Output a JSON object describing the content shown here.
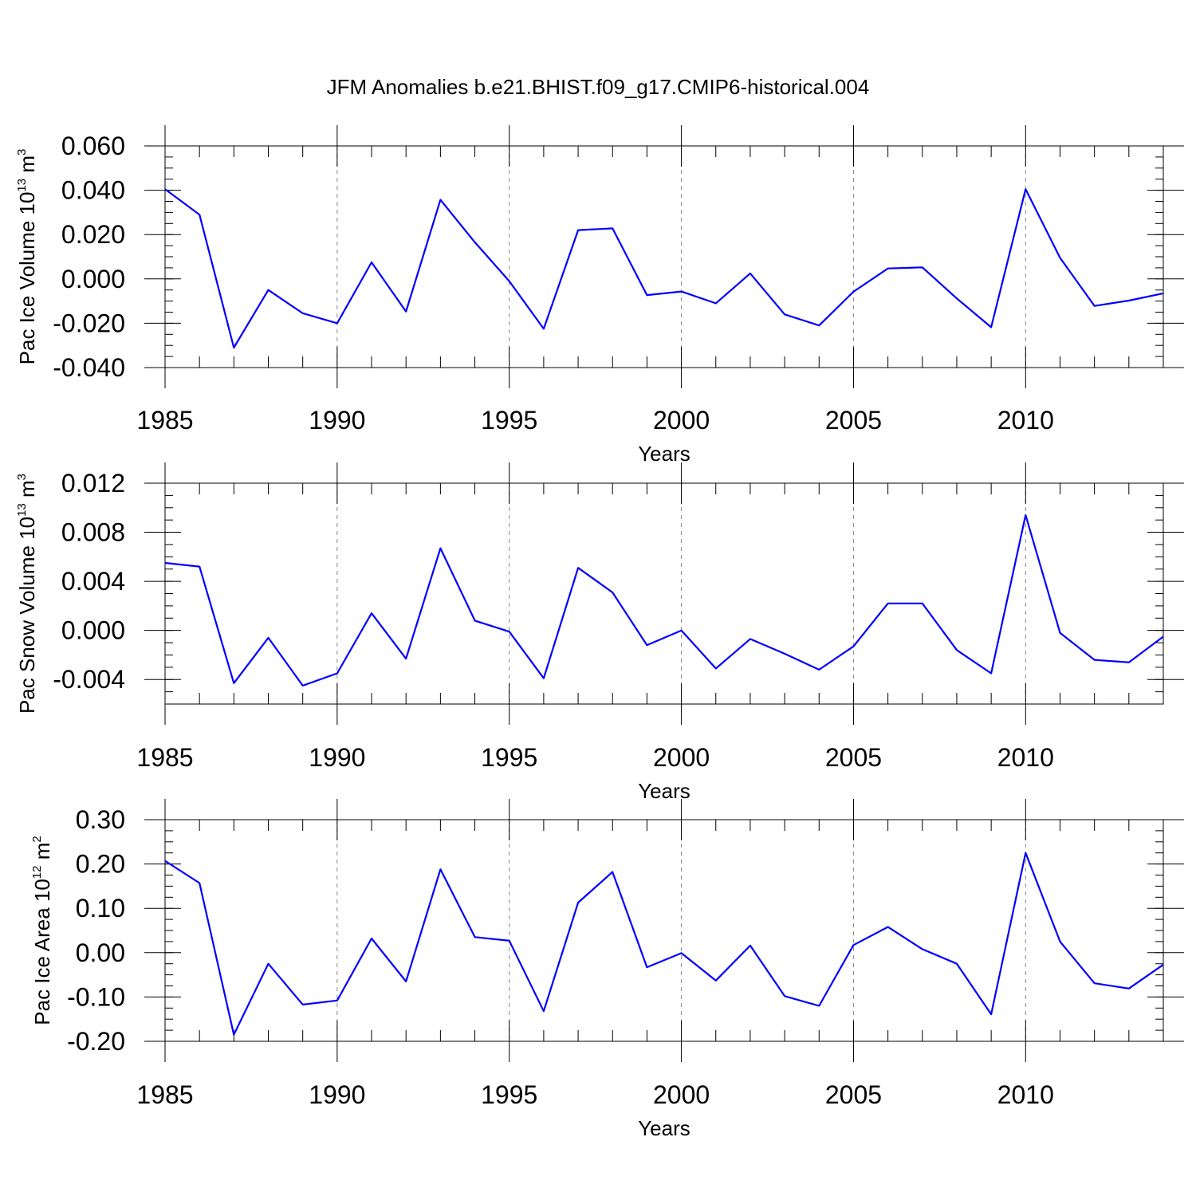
{
  "title": "JFM Anomalies b.e21.BHIST.f09_g17.CMIP6-historical.004",
  "colors": {
    "line": "#0000ff",
    "axis": "#000000",
    "grid": "#888888"
  },
  "chart_data": [
    {
      "type": "line",
      "ylabel": "Pac Ice Volume 10",
      "ylabel_exp": "13",
      "ylabel_unit": " m",
      "ylabel_unit_exp": "3",
      "xlabel": "Years",
      "xlim": [
        1985,
        2014
      ],
      "ylim": [
        -0.04,
        0.06
      ],
      "yticks": [
        -0.04,
        -0.02,
        0.0,
        0.02,
        0.04,
        0.06
      ],
      "ytick_labels": [
        "-0.040",
        "-0.020",
        "0.000",
        "0.020",
        "0.040",
        "0.060"
      ],
      "yminor_step": 0.005,
      "xticks": [
        1985,
        1990,
        1995,
        2000,
        2005,
        2010
      ],
      "xtick_labels": [
        "1985",
        "1990",
        "1995",
        "2000",
        "2005",
        "2010"
      ],
      "grid_x": [
        1990,
        1995,
        2000,
        2005,
        2010
      ],
      "x": [
        1985,
        1986,
        1987,
        1988,
        1989,
        1990,
        1991,
        1992,
        1993,
        1994,
        1995,
        1996,
        1997,
        1998,
        1999,
        2000,
        2001,
        2002,
        2003,
        2004,
        2005,
        2006,
        2007,
        2008,
        2009,
        2010,
        2011,
        2012,
        2013,
        2014
      ],
      "values": [
        0.0405,
        0.029,
        -0.031,
        -0.005,
        -0.0155,
        -0.02,
        0.0075,
        -0.0147,
        0.0357,
        0.0165,
        -0.001,
        -0.0225,
        0.022,
        0.0228,
        -0.0073,
        -0.0057,
        -0.011,
        0.0025,
        -0.016,
        -0.021,
        -0.0058,
        0.0047,
        0.0052,
        -0.0088,
        -0.0218,
        0.0405,
        0.0095,
        -0.0122,
        -0.0098,
        -0.0065
      ]
    },
    {
      "type": "line",
      "ylabel": "Pac Snow Volume 10",
      "ylabel_exp": "13",
      "ylabel_unit": " m",
      "ylabel_unit_exp": "3",
      "xlabel": "Years",
      "xlim": [
        1985,
        2014
      ],
      "ylim": [
        -0.006,
        0.012
      ],
      "yticks": [
        -0.004,
        0.0,
        0.004,
        0.008,
        0.012
      ],
      "ytick_labels": [
        "-0.004",
        "0.000",
        "0.004",
        "0.008",
        "0.012"
      ],
      "yminor_step": 0.001,
      "xticks": [
        1985,
        1990,
        1995,
        2000,
        2005,
        2010
      ],
      "xtick_labels": [
        "1985",
        "1990",
        "1995",
        "2000",
        "2005",
        "2010"
      ],
      "grid_x": [
        1990,
        1995,
        2000,
        2005,
        2010
      ],
      "x": [
        1985,
        1986,
        1987,
        1988,
        1989,
        1990,
        1991,
        1992,
        1993,
        1994,
        1995,
        1996,
        1997,
        1998,
        1999,
        2000,
        2001,
        2002,
        2003,
        2004,
        2005,
        2006,
        2007,
        2008,
        2009,
        2010,
        2011,
        2012,
        2013,
        2014
      ],
      "values": [
        0.0055,
        0.0052,
        -0.0043,
        -0.0006,
        -0.0045,
        -0.0035,
        0.0014,
        -0.0023,
        0.0067,
        0.0008,
        -0.0001,
        -0.0039,
        0.0051,
        0.0031,
        -0.0012,
        0.0,
        -0.0031,
        -0.0007,
        -0.0019,
        -0.0032,
        -0.0013,
        0.0022,
        0.0022,
        -0.0016,
        -0.0035,
        0.0094,
        -0.0002,
        -0.0024,
        -0.0026,
        -0.0005
      ]
    },
    {
      "type": "line",
      "ylabel": "Pac Ice Area 10",
      "ylabel_exp": "12",
      "ylabel_unit": " m",
      "ylabel_unit_exp": "2",
      "xlabel": "Years",
      "xlim": [
        1985,
        2014
      ],
      "ylim": [
        -0.2,
        0.3
      ],
      "yticks": [
        -0.2,
        -0.1,
        0.0,
        0.1,
        0.2,
        0.3
      ],
      "ytick_labels": [
        "-0.20",
        "-0.10",
        "0.00",
        "0.10",
        "0.20",
        "0.30"
      ],
      "yminor_step": 0.025,
      "xticks": [
        1985,
        1990,
        1995,
        2000,
        2005,
        2010
      ],
      "xtick_labels": [
        "1985",
        "1990",
        "1995",
        "2000",
        "2005",
        "2010"
      ],
      "grid_x": [
        1990,
        1995,
        2000,
        2005,
        2010
      ],
      "x": [
        1985,
        1986,
        1987,
        1988,
        1989,
        1990,
        1991,
        1992,
        1993,
        1994,
        1995,
        1996,
        1997,
        1998,
        1999,
        2000,
        2001,
        2002,
        2003,
        2004,
        2005,
        2006,
        2007,
        2008,
        2009,
        2010,
        2011,
        2012,
        2013,
        2014
      ],
      "values": [
        0.207,
        0.157,
        -0.185,
        -0.025,
        -0.117,
        -0.108,
        0.032,
        -0.065,
        0.188,
        0.035,
        0.027,
        -0.132,
        0.113,
        0.182,
        -0.033,
        -0.001,
        -0.063,
        0.016,
        -0.098,
        -0.12,
        0.017,
        0.058,
        0.008,
        -0.025,
        -0.139,
        0.225,
        0.025,
        -0.069,
        -0.081,
        -0.027
      ]
    }
  ]
}
